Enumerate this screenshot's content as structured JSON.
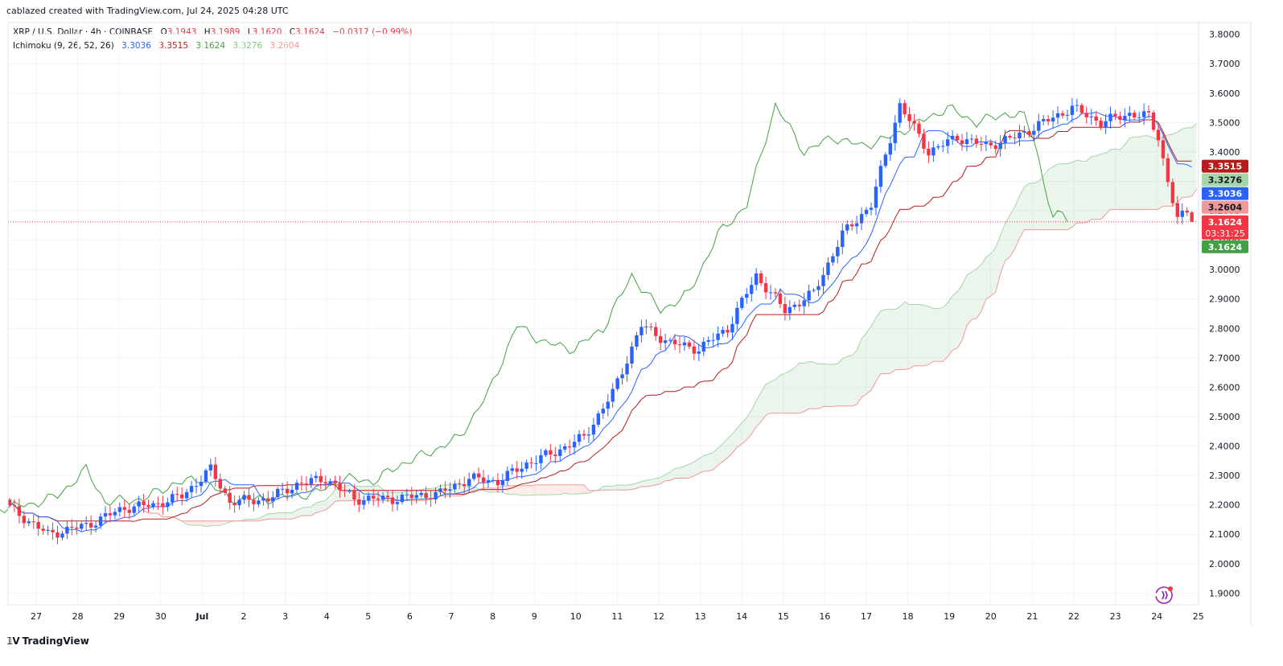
{
  "credit": "cablazed created with TradingView.com, Jul 24, 2025 04:28 UTC",
  "symbol": {
    "name": "XRP / U.S. Dollar · 4h · COINBASE",
    "o_label": "O",
    "o": "3.1943",
    "h_label": "H",
    "h": "3.1989",
    "l_label": "L",
    "l": "3.1620",
    "c_label": "C",
    "c": "3.1624",
    "change": "−0.0317 (−0.99%)"
  },
  "indicator": {
    "name": "Ichimoku (9, 26, 52, 26)",
    "values": [
      "3.3036",
      "3.3515",
      "3.1624",
      "3.3276",
      "3.2604"
    ]
  },
  "colors": {
    "up": "#2962ff",
    "down": "#f23645",
    "conversion": "#2962ff",
    "base": "#b71c1c",
    "lagging": "#43a047",
    "leadA": "#a5d6a7",
    "leadB": "#ef9a9a",
    "price_line": "#f23645"
  },
  "footer_logo": "TradingView",
  "widget_icon": "sparkle-icon",
  "chart_data": {
    "type": "candlestick",
    "timeframe": "4h",
    "ylim": [
      1.86,
      3.84
    ],
    "y_ticks": [
      "3.8000",
      "3.7000",
      "3.6000",
      "3.5000",
      "3.4000",
      "3.3000",
      "3.2000",
      "3.1000",
      "3.0000",
      "2.9000",
      "2.8000",
      "2.7000",
      "2.6000",
      "2.5000",
      "2.4000",
      "2.3000",
      "2.2000",
      "2.1000",
      "2.0000",
      "1.9000"
    ],
    "x_ticks": [
      "27",
      "28",
      "29",
      "30",
      "Jul",
      "2",
      "3",
      "4",
      "5",
      "6",
      "7",
      "8",
      "9",
      "10",
      "11",
      "12",
      "13",
      "14",
      "15",
      "16",
      "17",
      "18",
      "19",
      "20",
      "21",
      "22",
      "23",
      "24",
      "25"
    ],
    "last_price": 3.1624,
    "countdown": "03:31:25",
    "price_badges": [
      {
        "value": "3.3515",
        "series": "base",
        "bg": "#b71c1c",
        "fg": "#ffffff"
      },
      {
        "value": "3.3276",
        "series": "leadA",
        "bg": "#a5d6a7",
        "fg": "#131722"
      },
      {
        "value": "3.3036",
        "series": "conversion",
        "bg": "#2962ff",
        "fg": "#ffffff"
      },
      {
        "value": "3.2604",
        "series": "leadB",
        "bg": "#ef9a9a",
        "fg": "#131722"
      },
      {
        "value": "3.1624",
        "series": "last",
        "bg": "#f23645",
        "fg": "#ffffff"
      },
      {
        "value": "3.1624",
        "series": "lagging",
        "bg": "#43a047",
        "fg": "#ffffff"
      }
    ],
    "close_anchors": [
      [
        0,
        2.19
      ],
      [
        8,
        2.1
      ],
      [
        16,
        2.13
      ],
      [
        24,
        2.19
      ],
      [
        30,
        2.2
      ],
      [
        36,
        2.23
      ],
      [
        42,
        2.32
      ],
      [
        46,
        2.21
      ],
      [
        54,
        2.22
      ],
      [
        60,
        2.27
      ],
      [
        66,
        2.29
      ],
      [
        72,
        2.22
      ],
      [
        80,
        2.22
      ],
      [
        90,
        2.24
      ],
      [
        96,
        2.29
      ],
      [
        102,
        2.28
      ],
      [
        108,
        2.34
      ],
      [
        114,
        2.38
      ],
      [
        120,
        2.43
      ],
      [
        126,
        2.58
      ],
      [
        132,
        2.81
      ],
      [
        138,
        2.75
      ],
      [
        144,
        2.73
      ],
      [
        150,
        2.8
      ],
      [
        156,
        2.98
      ],
      [
        162,
        2.86
      ],
      [
        168,
        2.92
      ],
      [
        174,
        3.12
      ],
      [
        180,
        3.22
      ],
      [
        186,
        3.56
      ],
      [
        192,
        3.4
      ],
      [
        198,
        3.45
      ],
      [
        204,
        3.42
      ],
      [
        210,
        3.45
      ],
      [
        216,
        3.5
      ],
      [
        222,
        3.55
      ],
      [
        228,
        3.5
      ],
      [
        234,
        3.53
      ],
      [
        238,
        3.52
      ],
      [
        240,
        3.45
      ],
      [
        242,
        3.3
      ],
      [
        244,
        3.17
      ],
      [
        246,
        3.194
      ],
      [
        247,
        3.1624
      ]
    ]
  }
}
